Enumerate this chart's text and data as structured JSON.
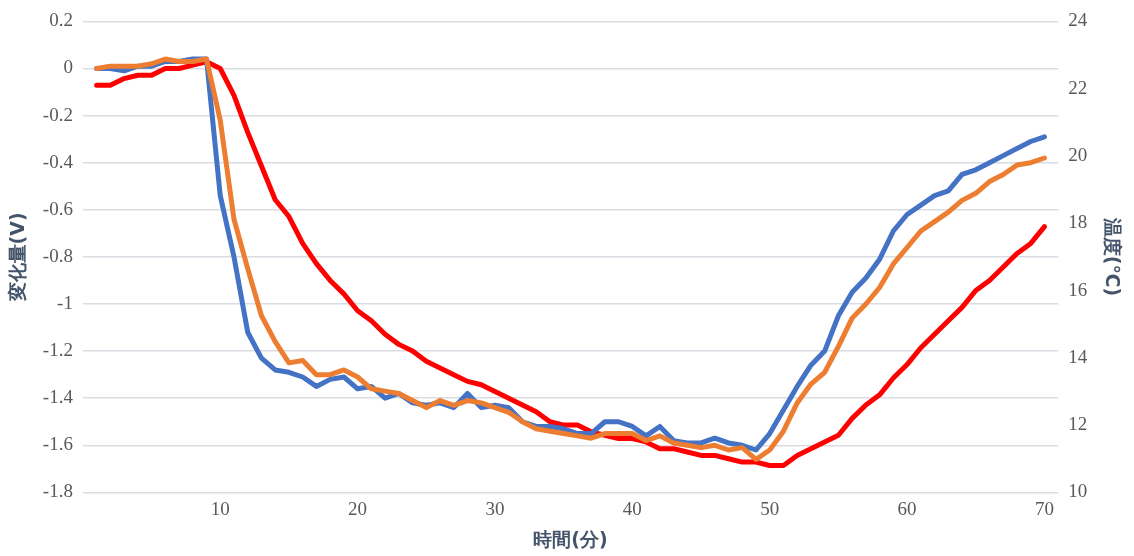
{
  "chart_data": {
    "type": "line",
    "xlabel": "時間(分)",
    "ylabel": "変化量(V)",
    "y2label": "温度(℃)",
    "x": [
      1,
      2,
      3,
      4,
      5,
      6,
      7,
      8,
      9,
      10,
      11,
      12,
      13,
      14,
      15,
      16,
      17,
      18,
      19,
      20,
      21,
      22,
      23,
      24,
      25,
      26,
      27,
      28,
      29,
      30,
      31,
      32,
      33,
      34,
      35,
      36,
      37,
      38,
      39,
      40,
      41,
      42,
      43,
      44,
      45,
      46,
      47,
      48,
      49,
      50,
      51,
      52,
      53,
      54,
      55,
      56,
      57,
      58,
      59,
      60,
      61,
      62,
      63,
      64,
      65,
      66,
      67,
      68,
      69,
      70
    ],
    "xlim": [
      0,
      71
    ],
    "xticks": [
      10,
      20,
      30,
      40,
      50,
      60,
      70
    ],
    "ylim": [
      -1.8,
      0.2
    ],
    "yticks": [
      {
        "value": -1.8,
        "label": "-1.8"
      },
      {
        "value": -1.6,
        "label": "-1.6"
      },
      {
        "value": -1.4,
        "label": "-1.4"
      },
      {
        "value": -1.2,
        "label": "-1.2"
      },
      {
        "value": -1,
        "label": "-1"
      },
      {
        "value": -0.8,
        "label": "-0.8"
      },
      {
        "value": -0.6,
        "label": "-0.6"
      },
      {
        "value": -0.4,
        "label": "-0.4"
      },
      {
        "value": -0.2,
        "label": "-0.2"
      },
      0,
      0.2
    ],
    "y2lim": [
      10,
      24
    ],
    "y2ticks": [
      10,
      12,
      14,
      16,
      18,
      20,
      22,
      24
    ],
    "grid": "y",
    "legend": false,
    "marker": "none",
    "line_style": "solid",
    "series": [
      {
        "color": "#ed7d31",
        "values": [
          0,
          0.01,
          0.01,
          0.01,
          0.02,
          0.04,
          0.03,
          0.03,
          0.04,
          -0.22,
          -0.64,
          -0.85,
          -1.05,
          -1.16,
          -1.25,
          -1.24,
          -1.3,
          -1.3,
          -1.28,
          -1.31,
          -1.36,
          -1.37,
          -1.38,
          -1.41,
          -1.44,
          -1.41,
          -1.43,
          -1.41,
          -1.42,
          -1.44,
          -1.46,
          -1.5,
          -1.53,
          -1.54,
          -1.55,
          -1.56,
          -1.57,
          -1.55,
          -1.55,
          -1.55,
          -1.58,
          -1.56,
          -1.59,
          -1.6,
          -1.61,
          -1.6,
          -1.62,
          -1.61,
          -1.66,
          -1.62,
          -1.54,
          -1.42,
          -1.34,
          -1.29,
          -1.18,
          -1.06,
          -1,
          -0.93,
          -0.83,
          -0.76,
          -0.69,
          -0.65,
          -0.61,
          -0.56,
          -0.53,
          -0.48,
          -0.45,
          -0.41,
          -0.4,
          -0.38
        ]
      },
      {
        "color": "#4472c4",
        "values": [
          0,
          0,
          -0.01,
          0.01,
          0.01,
          0.03,
          0.03,
          0.04,
          0.04,
          -0.54,
          -0.8,
          -1.12,
          -1.23,
          -1.28,
          -1.29,
          -1.31,
          -1.35,
          -1.32,
          -1.31,
          -1.36,
          -1.35,
          -1.4,
          -1.38,
          -1.42,
          -1.43,
          -1.42,
          -1.44,
          -1.38,
          -1.44,
          -1.43,
          -1.44,
          -1.5,
          -1.52,
          -1.52,
          -1.53,
          -1.55,
          -1.55,
          -1.5,
          -1.5,
          -1.52,
          -1.56,
          -1.52,
          -1.58,
          -1.59,
          -1.59,
          -1.57,
          -1.59,
          -1.6,
          -1.62,
          -1.55,
          -1.45,
          -1.35,
          -1.26,
          -1.2,
          -1.05,
          -0.95,
          -0.89,
          -0.81,
          -0.69,
          -0.62,
          -0.58,
          -0.54,
          -0.52,
          -0.45,
          -0.43,
          -0.4,
          -0.37,
          -0.34,
          -0.31,
          -0.29
        ]
      },
      {
        "color": "#ff0000",
        "axis": "y2",
        "values": [
          22.1,
          22.1,
          22.3,
          22.4,
          22.4,
          22.6,
          22.6,
          22.7,
          22.8,
          22.6,
          21.8,
          20.7,
          19.7,
          18.7,
          18.2,
          17.4,
          16.8,
          16.3,
          15.9,
          15.4,
          15.1,
          14.7,
          14.4,
          14.2,
          13.9,
          13.7,
          13.5,
          13.3,
          13.2,
          13,
          12.8,
          12.6,
          12.4,
          12.1,
          12,
          12,
          11.8,
          11.7,
          11.6,
          11.6,
          11.5,
          11.3,
          11.3,
          11.2,
          11.1,
          11.1,
          11,
          10.9,
          10.9,
          10.8,
          10.8,
          11.1,
          11.3,
          11.5,
          11.7,
          12.2,
          12.6,
          12.9,
          13.4,
          13.8,
          14.3,
          14.7,
          15.1,
          15.5,
          16,
          16.3,
          16.7,
          17.1,
          17.4,
          17.9
        ]
      }
    ]
  }
}
